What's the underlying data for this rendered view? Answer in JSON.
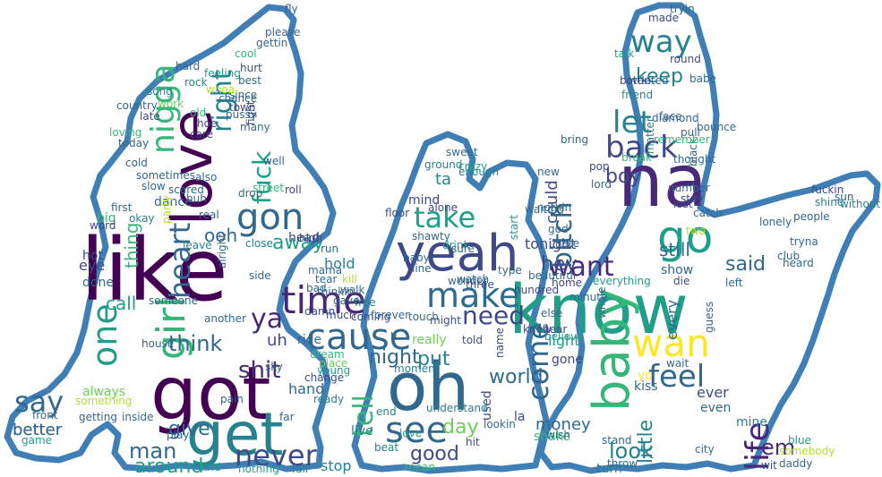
{
  "palette": {
    "outline": "#3f7fb5",
    "background": "#ffffff",
    "viridis": [
      "#440154",
      "#482878",
      "#3e4989",
      "#31688e",
      "#26828e",
      "#1f9e89",
      "#35b779",
      "#6ece58",
      "#b5de2b",
      "#fde725"
    ]
  },
  "words": [
    {
      "text": "like",
      "c": 0
    },
    {
      "text": "know",
      "c": 5
    },
    {
      "text": "got",
      "c": 0
    },
    {
      "text": "na",
      "c": 1
    },
    {
      "text": "oh",
      "c": 3
    },
    {
      "text": "get",
      "c": 4
    },
    {
      "text": "love",
      "c": 0
    },
    {
      "text": "yeah",
      "c": 2
    },
    {
      "text": "baby",
      "c": 6
    },
    {
      "text": "wan",
      "c": 9
    },
    {
      "text": "go",
      "c": 5
    },
    {
      "text": "cause",
      "c": 3
    },
    {
      "text": "gon",
      "c": 3
    },
    {
      "text": "girl",
      "c": 6
    },
    {
      "text": "make",
      "c": 3
    },
    {
      "text": "see",
      "c": 3
    },
    {
      "text": "want",
      "c": 1
    },
    {
      "text": "back",
      "c": 2
    },
    {
      "text": "feel",
      "c": 3
    },
    {
      "text": "time",
      "c": 1
    },
    {
      "text": "never",
      "c": 2
    },
    {
      "text": "take",
      "c": 5
    },
    {
      "text": "nigga",
      "c": 6
    },
    {
      "text": "let",
      "c": 4
    },
    {
      "text": "way",
      "c": 4
    },
    {
      "text": "one",
      "c": 5
    },
    {
      "text": "heart",
      "c": 3
    },
    {
      "text": "need",
      "c": 2
    },
    {
      "text": "bitch",
      "c": 3
    },
    {
      "text": "come",
      "c": 3
    },
    {
      "text": "life",
      "c": 1
    },
    {
      "text": "say",
      "c": 3
    },
    {
      "text": "tell",
      "c": 6
    },
    {
      "text": "ya",
      "c": 1
    },
    {
      "text": "fuck",
      "c": 5
    },
    {
      "text": "right",
      "c": 4
    },
    {
      "text": "think",
      "c": 3
    },
    {
      "text": "keep",
      "c": 4
    },
    {
      "text": "good",
      "c": 2
    },
    {
      "text": "shit",
      "c": 1
    },
    {
      "text": "world",
      "c": 3
    },
    {
      "text": "night",
      "c": 3
    },
    {
      "text": "day",
      "c": 7
    },
    {
      "text": "give",
      "c": 3
    },
    {
      "text": "around",
      "c": 5
    },
    {
      "text": "man",
      "c": 3
    },
    {
      "text": "look",
      "c": 4
    },
    {
      "text": "em",
      "c": 1
    },
    {
      "text": "boy",
      "c": 2
    },
    {
      "text": "away",
      "c": 5
    },
    {
      "text": "put",
      "c": 4
    },
    {
      "text": "said",
      "c": 3
    },
    {
      "text": "still",
      "c": 3
    },
    {
      "text": "hey",
      "c": 2
    },
    {
      "text": "could",
      "c": 2
    },
    {
      "text": "money",
      "c": 3
    },
    {
      "text": "little",
      "c": 4
    },
    {
      "text": "tonight",
      "c": 2
    },
    {
      "text": "ta",
      "c": 4
    },
    {
      "text": "call",
      "c": 5
    },
    {
      "text": "better",
      "c": 3
    },
    {
      "text": "thing",
      "c": 6
    },
    {
      "text": "better",
      "c": 3
    },
    {
      "text": "light",
      "c": 5
    },
    {
      "text": "ever",
      "c": 2
    },
    {
      "text": "even",
      "c": 3
    },
    {
      "text": "every",
      "c": 3
    },
    {
      "text": "show",
      "c": 3
    },
    {
      "text": "hold",
      "c": 4
    },
    {
      "text": "stop",
      "c": 4
    },
    {
      "text": "find",
      "c": 5
    },
    {
      "text": "nothing",
      "c": 5
    },
    {
      "text": "fall",
      "c": 4
    },
    {
      "text": "ooh",
      "c": 3
    },
    {
      "text": "uh",
      "c": 2
    },
    {
      "text": "ride",
      "c": 3
    },
    {
      "text": "hand",
      "c": 3
    },
    {
      "text": "head",
      "c": 2
    },
    {
      "text": "bad",
      "c": 3
    },
    {
      "text": "live",
      "c": 4
    },
    {
      "text": "done",
      "c": 3
    },
    {
      "text": "eye",
      "c": 2
    },
    {
      "text": "hot",
      "c": 2
    },
    {
      "text": "big",
      "c": 6
    },
    {
      "text": "always",
      "c": 7
    },
    {
      "text": "dance",
      "c": 3
    },
    {
      "text": "really",
      "c": 7
    },
    {
      "text": "mind",
      "c": 2
    },
    {
      "text": "alone",
      "c": 2
    },
    {
      "text": "floor",
      "c": 2
    },
    {
      "text": "turn",
      "c": 4
    },
    {
      "text": "kiss",
      "c": 3
    },
    {
      "text": "home",
      "c": 2
    },
    {
      "text": "everything",
      "c": 5
    },
    {
      "text": "wait",
      "c": 3
    },
    {
      "text": "mine",
      "c": 4
    },
    {
      "text": "made",
      "c": 2
    },
    {
      "text": "talk",
      "c": 5
    },
    {
      "text": "round",
      "c": 2
    },
    {
      "text": "friend",
      "c": 4
    },
    {
      "text": "pull",
      "c": 3
    },
    {
      "text": "face",
      "c": 3
    },
    {
      "text": "club",
      "c": 3
    },
    {
      "text": "left",
      "c": 3
    },
    {
      "text": "start",
      "c": 5
    },
    {
      "text": "end",
      "c": 4
    },
    {
      "text": "beat",
      "c": 4
    },
    {
      "text": "mean",
      "c": 6
    },
    {
      "text": "hit",
      "c": 2
    },
    {
      "text": "shake",
      "c": 6
    },
    {
      "text": "yo",
      "c": 9
    },
    {
      "text": "two",
      "c": 8
    },
    {
      "text": "die",
      "c": 2
    },
    {
      "text": "gone",
      "c": 2
    },
    {
      "text": "young",
      "c": 5
    },
    {
      "text": "dream",
      "c": 6
    },
    {
      "text": "something",
      "c": 8
    },
    {
      "text": "well",
      "c": 3
    },
    {
      "text": "hard",
      "c": 3
    },
    {
      "text": "feeling",
      "c": 5
    },
    {
      "text": "best",
      "c": 3
    },
    {
      "text": "hurt",
      "c": 2
    },
    {
      "text": "song",
      "c": 4
    },
    {
      "text": "old",
      "c": 6
    },
    {
      "text": "work",
      "c": 7
    },
    {
      "text": "roll",
      "c": 2
    },
    {
      "text": "drop",
      "c": 3
    },
    {
      "text": "high",
      "c": 2
    },
    {
      "text": "close",
      "c": 4
    },
    {
      "text": "run",
      "c": 3
    },
    {
      "text": "first",
      "c": 3
    },
    {
      "text": "word",
      "c": 2
    },
    {
      "text": "another",
      "c": 3
    },
    {
      "text": "someone",
      "c": 3
    },
    {
      "text": "house",
      "c": 3
    },
    {
      "text": "ready",
      "c": 4
    },
    {
      "text": "much",
      "c": 2
    },
    {
      "text": "place",
      "c": 7
    },
    {
      "text": "free",
      "c": 4
    },
    {
      "text": "walk",
      "c": 3
    },
    {
      "text": "moment",
      "c": 4
    },
    {
      "text": "touch",
      "c": 3
    },
    {
      "text": "coming",
      "c": 2
    },
    {
      "text": "forever",
      "c": 3
    },
    {
      "text": "used",
      "c": 2
    },
    {
      "text": "la",
      "c": 2
    },
    {
      "text": "u",
      "c": 3
    },
    {
      "text": "new",
      "c": 3
    },
    {
      "text": "bring",
      "c": 3
    },
    {
      "text": "break",
      "c": 6
    },
    {
      "text": "matter",
      "c": 4
    },
    {
      "text": "thought",
      "c": 3
    },
    {
      "text": "black",
      "c": 3
    },
    {
      "text": "catch",
      "c": 3
    },
    {
      "text": "stay",
      "c": 2
    },
    {
      "text": "without",
      "c": 4
    },
    {
      "text": "sun",
      "c": 3
    },
    {
      "text": "else",
      "c": 3
    },
    {
      "text": "lookin",
      "c": 3
    },
    {
      "text": "play",
      "c": 3
    },
    {
      "text": "whole",
      "c": 3
    },
    {
      "text": "name",
      "c": 2
    },
    {
      "text": "lost",
      "c": 2
    },
    {
      "text": "game",
      "c": 5
    },
    {
      "text": "sky",
      "c": 3
    },
    {
      "text": "damn",
      "c": 2
    },
    {
      "text": "change",
      "c": 2
    },
    {
      "text": "leave",
      "c": 4
    },
    {
      "text": "party",
      "c": 8
    },
    {
      "text": "alright",
      "c": 3
    },
    {
      "text": "might",
      "c": 2
    },
    {
      "text": "told",
      "c": 2
    },
    {
      "text": "wanted",
      "c": 3
    },
    {
      "text": "fight",
      "c": 2
    },
    {
      "text": "street",
      "c": 6
    },
    {
      "text": "since",
      "c": 3
    },
    {
      "text": "please",
      "c": 3
    },
    {
      "text": "gettin",
      "c": 3
    },
    {
      "text": "cool",
      "c": 6
    },
    {
      "text": "late",
      "c": 2
    },
    {
      "text": "hoe",
      "c": 2
    },
    {
      "text": "care",
      "c": 2
    },
    {
      "text": "loving",
      "c": 6
    },
    {
      "text": "today",
      "c": 3
    },
    {
      "text": "huh",
      "c": 3
    },
    {
      "text": "okay",
      "c": 4
    },
    {
      "text": "cold",
      "c": 3
    },
    {
      "text": "sometimes",
      "c": 3
    },
    {
      "text": "slow",
      "c": 3
    },
    {
      "text": "daddy",
      "c": 3
    },
    {
      "text": "blue",
      "c": 5
    },
    {
      "text": "wit",
      "c": 2
    },
    {
      "text": "throw",
      "c": 3
    },
    {
      "text": "wish",
      "c": 3
    },
    {
      "text": "city",
      "c": 3
    },
    {
      "text": "stand",
      "c": 3
    },
    {
      "text": "pain",
      "c": 3
    },
    {
      "text": "scared",
      "c": 3
    },
    {
      "text": "understand",
      "c": 4
    },
    {
      "text": "love",
      "c": 5
    },
    {
      "text": "knew",
      "c": 2
    },
    {
      "text": "hate",
      "c": 3
    },
    {
      "text": "people",
      "c": 3
    },
    {
      "text": "lonely",
      "c": 3
    },
    {
      "text": "tryna",
      "c": 3
    },
    {
      "text": "country",
      "c": 3
    },
    {
      "text": "diamond",
      "c": 3
    },
    {
      "text": "ground",
      "c": 4
    },
    {
      "text": "enough",
      "c": 4
    },
    {
      "text": "remember",
      "c": 6
    },
    {
      "text": "tryin",
      "c": 3
    },
    {
      "text": "fly",
      "c": 3
    },
    {
      "text": "getting",
      "c": 3
    },
    {
      "text": "guess",
      "c": 3
    },
    {
      "text": "wonder",
      "c": 3
    },
    {
      "text": "type",
      "c": 3
    },
    {
      "text": "crazy",
      "c": 5
    },
    {
      "text": "believe",
      "c": 5
    },
    {
      "text": "inside",
      "c": 3
    },
    {
      "text": "front",
      "c": 3
    },
    {
      "text": "babe",
      "c": 3
    },
    {
      "text": "bottle",
      "c": 2
    },
    {
      "text": "fuckin",
      "c": 2
    },
    {
      "text": "shine",
      "c": 4
    },
    {
      "text": "somebody",
      "c": 8
    },
    {
      "text": "sweet",
      "c": 3
    },
    {
      "text": "shawty",
      "c": 3
    },
    {
      "text": "drink",
      "c": 5
    },
    {
      "text": "sure",
      "c": 3
    },
    {
      "text": "watch",
      "c": 3
    },
    {
      "text": "hear",
      "c": 2
    },
    {
      "text": "beautiful",
      "c": 3
    },
    {
      "text": "hundred",
      "c": 2
    },
    {
      "text": "three",
      "c": 2
    },
    {
      "text": "waiting",
      "c": 3
    },
    {
      "text": "pop",
      "c": 2
    },
    {
      "text": "lord",
      "c": 3
    },
    {
      "text": "far",
      "c": 3
    },
    {
      "text": "minute",
      "c": 3
    },
    {
      "text": "god",
      "c": 3
    },
    {
      "text": "gave",
      "c": 3
    },
    {
      "text": "thinkin",
      "c": 3
    },
    {
      "text": "kill",
      "c": 8
    },
    {
      "text": "mama",
      "c": 3
    },
    {
      "text": "tear",
      "c": 3
    },
    {
      "text": "nothin",
      "c": 3
    },
    {
      "text": "number",
      "c": 3
    },
    {
      "text": "bounce",
      "c": 3
    },
    {
      "text": "baby",
      "c": 3
    },
    {
      "text": "line",
      "c": 3
    },
    {
      "text": "side",
      "c": 3
    },
    {
      "text": "real",
      "c": 3
    },
    {
      "text": "also",
      "c": 3
    },
    {
      "text": "town",
      "c": 2
    },
    {
      "text": "heard",
      "c": 3
    },
    {
      "text": "rock",
      "c": 4
    },
    {
      "text": "whoa",
      "c": 8
    },
    {
      "text": "chance",
      "c": 3
    },
    {
      "text": "pussy",
      "c": 3
    },
    {
      "text": "many",
      "c": 3
    },
    {
      "text": "ah",
      "c": 3
    },
    {
      "text": "boom",
      "c": 3
    },
    {
      "text": "tho",
      "c": 3
    },
    {
      "text": "true",
      "c": 3
    },
    {
      "text": "cry",
      "c": 3
    }
  ]
}
